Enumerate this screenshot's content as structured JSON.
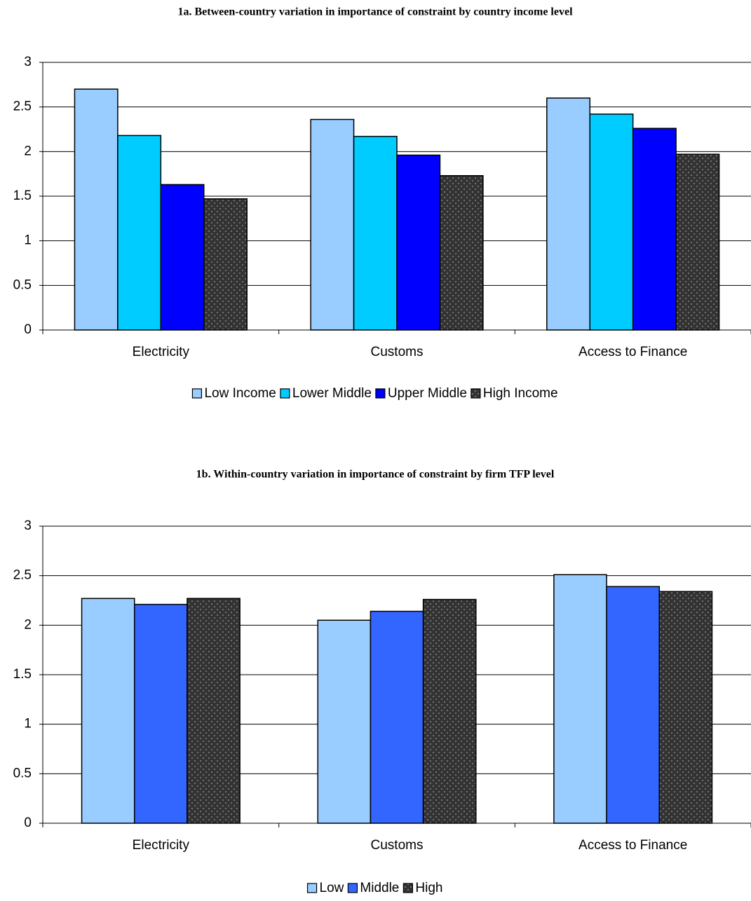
{
  "chart_data": [
    {
      "type": "bar",
      "title": "1a. Between-country variation in importance of constraint by country income level",
      "categories": [
        "Electricity",
        "Customs",
        "Access to Finance"
      ],
      "series": [
        {
          "name": "Low Income",
          "color": "#99ccff",
          "values": [
            2.7,
            2.36,
            2.6
          ]
        },
        {
          "name": "Lower Middle",
          "color": "#00ccff",
          "values": [
            2.18,
            2.17,
            2.42
          ]
        },
        {
          "name": "Upper Middle",
          "color": "#0000ff",
          "values": [
            1.63,
            1.96,
            2.26
          ]
        },
        {
          "name": "High Income",
          "color": "#333333",
          "pattern": "dots",
          "values": [
            1.47,
            1.73,
            1.97
          ]
        }
      ],
      "ylim": [
        0,
        3
      ],
      "yticks": [
        0,
        0.5,
        1,
        1.5,
        2,
        2.5,
        3
      ],
      "grid": true,
      "legend": "bottom"
    },
    {
      "type": "bar",
      "title": "1b. Within-country variation in importance of constraint by firm TFP level",
      "categories": [
        "Electricity",
        "Customs",
        "Access to Finance"
      ],
      "series": [
        {
          "name": "Low",
          "color": "#99ccff",
          "values": [
            2.27,
            2.05,
            2.51
          ]
        },
        {
          "name": "Middle",
          "color": "#3366ff",
          "values": [
            2.21,
            2.14,
            2.39
          ]
        },
        {
          "name": "High",
          "color": "#333333",
          "pattern": "dots",
          "values": [
            2.27,
            2.26,
            2.34
          ]
        }
      ],
      "ylim": [
        0,
        3
      ],
      "yticks": [
        0,
        0.5,
        1,
        1.5,
        2,
        2.5,
        3
      ],
      "grid": true,
      "legend": "bottom"
    }
  ]
}
